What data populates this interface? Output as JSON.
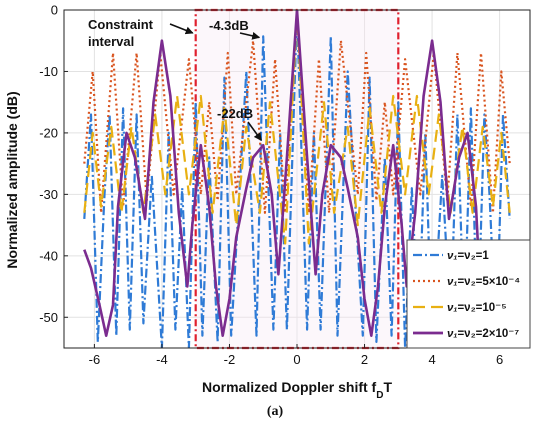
{
  "caption": "(a)",
  "chart_data": {
    "type": "line",
    "xlabel": "Normalized Doppler shift f",
    "xlabel_sub": "D",
    "xlabel_tail": "T",
    "ylabel": "Normalized amplitude (dB)",
    "xlim": [
      -6.9,
      6.9
    ],
    "ylim": [
      -55,
      0
    ],
    "xticks": [
      -6,
      -4,
      -2,
      0,
      2,
      4,
      6
    ],
    "yticks": [
      0,
      -10,
      -20,
      -30,
      -40,
      -50
    ],
    "grid": true,
    "legend_position": "bottom-right",
    "constraint_interval": {
      "x": [
        -3,
        3
      ],
      "label_line1": "Constraint",
      "label_line2": "interval",
      "color": "#e0202e"
    },
    "annotations": [
      {
        "text": "-4.3dB",
        "x": -1.0,
        "y": -4.3
      },
      {
        "text": "-22dB",
        "x": -1.0,
        "y": -22
      }
    ],
    "series": [
      {
        "name": "ν1=ν2=1",
        "legend_text": "=ν₂=1",
        "color": "#2f7bd6",
        "dash": "9,3,2,3",
        "points": [
          [
            -6.3,
            -34
          ],
          [
            -6.1,
            -17
          ],
          [
            -5.9,
            -54
          ],
          [
            -5.7,
            -30
          ],
          [
            -5.55,
            -17
          ],
          [
            -5.35,
            -53
          ],
          [
            -5.15,
            -16
          ],
          [
            -4.95,
            -52
          ],
          [
            -4.75,
            -17
          ],
          [
            -4.55,
            -51
          ],
          [
            -4.3,
            -27
          ],
          [
            -4.0,
            -55
          ],
          [
            -3.8,
            -20
          ],
          [
            -3.6,
            -52
          ],
          [
            -3.4,
            -29
          ],
          [
            -3.2,
            -55
          ],
          [
            -3.0,
            -15
          ],
          [
            -2.8,
            -53
          ],
          [
            -2.6,
            -24
          ],
          [
            -2.35,
            -54
          ],
          [
            -2.15,
            -11
          ],
          [
            -1.95,
            -53
          ],
          [
            -1.5,
            -10
          ],
          [
            -1.2,
            -53
          ],
          [
            -1.0,
            -4.3
          ],
          [
            -0.7,
            -52
          ],
          [
            -0.5,
            -20
          ],
          [
            -0.3,
            -52
          ],
          [
            0,
            0
          ],
          [
            0.3,
            -52
          ],
          [
            0.5,
            -20
          ],
          [
            0.7,
            -52
          ],
          [
            1.0,
            -4.3
          ],
          [
            1.2,
            -53
          ],
          [
            1.5,
            -10
          ],
          [
            1.95,
            -53
          ],
          [
            2.15,
            -11
          ],
          [
            2.35,
            -54
          ],
          [
            2.6,
            -24
          ],
          [
            2.8,
            -53
          ],
          [
            3.0,
            -15
          ],
          [
            3.2,
            -55
          ],
          [
            3.4,
            -29
          ],
          [
            3.6,
            -52
          ],
          [
            3.8,
            -20
          ],
          [
            4.0,
            -55
          ],
          [
            4.3,
            -27
          ],
          [
            4.55,
            -51
          ],
          [
            4.75,
            -17
          ],
          [
            4.95,
            -52
          ],
          [
            5.15,
            -16
          ],
          [
            5.35,
            -53
          ],
          [
            5.55,
            -17
          ],
          [
            5.7,
            -30
          ],
          [
            5.9,
            -54
          ],
          [
            6.1,
            -17
          ],
          [
            6.3,
            -34
          ]
        ]
      },
      {
        "name": "ν1=ν2=5×10^-4",
        "legend_text": "=ν₂=5×10⁻⁴",
        "color": "#d9541f",
        "dash": "2,3",
        "points": [
          [
            -6.3,
            -25
          ],
          [
            -6.05,
            -10
          ],
          [
            -5.8,
            -33
          ],
          [
            -5.45,
            -7
          ],
          [
            -5.15,
            -32
          ],
          [
            -4.75,
            -7
          ],
          [
            -4.45,
            -31
          ],
          [
            -4.05,
            -7
          ],
          [
            -3.65,
            -30
          ],
          [
            -3.2,
            -8
          ],
          [
            -2.85,
            -30
          ],
          [
            -2.6,
            -15
          ],
          [
            -2.35,
            -31
          ],
          [
            -2.05,
            -7
          ],
          [
            -1.8,
            -30
          ],
          [
            -1.3,
            -5
          ],
          [
            -0.95,
            -33
          ],
          [
            -0.65,
            -8
          ],
          [
            -0.35,
            -33
          ],
          [
            0,
            0
          ],
          [
            0.35,
            -33
          ],
          [
            0.65,
            -8
          ],
          [
            0.95,
            -33
          ],
          [
            1.3,
            -5
          ],
          [
            1.8,
            -30
          ],
          [
            2.05,
            -7
          ],
          [
            2.35,
            -31
          ],
          [
            2.6,
            -15
          ],
          [
            2.85,
            -30
          ],
          [
            3.2,
            -8
          ],
          [
            3.65,
            -30
          ],
          [
            4.05,
            -7
          ],
          [
            4.45,
            -31
          ],
          [
            4.75,
            -7
          ],
          [
            5.15,
            -32
          ],
          [
            5.45,
            -7
          ],
          [
            5.8,
            -33
          ],
          [
            6.05,
            -10
          ],
          [
            6.3,
            -25
          ]
        ]
      },
      {
        "name": "ν1=ν2=10^-5",
        "legend_text": "=ν₂=10⁻⁵",
        "color": "#e8b012",
        "dash": "12,6",
        "points": [
          [
            -6.3,
            -33
          ],
          [
            -6.05,
            -20
          ],
          [
            -5.8,
            -32
          ],
          [
            -5.5,
            -19
          ],
          [
            -5.2,
            -33
          ],
          [
            -4.9,
            -19
          ],
          [
            -4.55,
            -33
          ],
          [
            -4.2,
            -17
          ],
          [
            -3.9,
            -30
          ],
          [
            -3.55,
            -14
          ],
          [
            -3.2,
            -30
          ],
          [
            -2.85,
            -14
          ],
          [
            -2.5,
            -33
          ],
          [
            -2.15,
            -16
          ],
          [
            -1.8,
            -35
          ],
          [
            -1.5,
            -19
          ],
          [
            -1.1,
            -33
          ],
          [
            -0.8,
            -15
          ],
          [
            -0.35,
            -38
          ],
          [
            0,
            0
          ],
          [
            0.35,
            -38
          ],
          [
            0.8,
            -15
          ],
          [
            1.1,
            -33
          ],
          [
            1.5,
            -19
          ],
          [
            1.8,
            -35
          ],
          [
            2.15,
            -16
          ],
          [
            2.5,
            -33
          ],
          [
            2.85,
            -14
          ],
          [
            3.2,
            -30
          ],
          [
            3.55,
            -14
          ],
          [
            3.9,
            -30
          ],
          [
            4.2,
            -17
          ],
          [
            4.55,
            -33
          ],
          [
            4.9,
            -19
          ],
          [
            5.2,
            -33
          ],
          [
            5.5,
            -19
          ],
          [
            5.8,
            -32
          ],
          [
            6.05,
            -20
          ],
          [
            6.3,
            -33
          ]
        ]
      },
      {
        "name": "ν1=ν2=2×10^-7",
        "legend_text": "=ν₂=2×10⁻⁷",
        "color": "#7b2c8f",
        "dash": "",
        "points": [
          [
            -6.3,
            -39
          ],
          [
            -6.1,
            -42
          ],
          [
            -5.85,
            -48
          ],
          [
            -5.65,
            -53
          ],
          [
            -5.45,
            -48
          ],
          [
            -5.3,
            -32
          ],
          [
            -5.05,
            -20
          ],
          [
            -4.8,
            -24
          ],
          [
            -4.5,
            -34
          ],
          [
            -4.25,
            -15
          ],
          [
            -4.0,
            -5
          ],
          [
            -3.75,
            -14
          ],
          [
            -3.5,
            -33
          ],
          [
            -3.25,
            -45
          ],
          [
            -3.1,
            -35
          ],
          [
            -2.85,
            -22
          ],
          [
            -2.6,
            -32
          ],
          [
            -2.4,
            -45
          ],
          [
            -2.2,
            -53
          ],
          [
            -2.0,
            -47
          ],
          [
            -1.8,
            -37
          ],
          [
            -1.5,
            -29
          ],
          [
            -1.3,
            -24
          ],
          [
            -1.0,
            -22
          ],
          [
            -0.75,
            -30
          ],
          [
            -0.55,
            -43
          ],
          [
            -0.3,
            -24
          ],
          [
            0,
            0
          ],
          [
            0.3,
            -24
          ],
          [
            0.55,
            -43
          ],
          [
            0.75,
            -30
          ],
          [
            1.0,
            -22
          ],
          [
            1.3,
            -24
          ],
          [
            1.5,
            -29
          ],
          [
            1.8,
            -37
          ],
          [
            2.0,
            -47
          ],
          [
            2.2,
            -53
          ],
          [
            2.4,
            -45
          ],
          [
            2.6,
            -32
          ],
          [
            2.85,
            -22
          ],
          [
            3.1,
            -35
          ],
          [
            3.25,
            -45
          ],
          [
            3.5,
            -33
          ],
          [
            3.75,
            -14
          ],
          [
            4.0,
            -5
          ],
          [
            4.25,
            -15
          ],
          [
            4.5,
            -34
          ],
          [
            4.8,
            -24
          ],
          [
            5.05,
            -20
          ],
          [
            5.3,
            -32
          ],
          [
            5.45,
            -48
          ],
          [
            5.65,
            -53
          ],
          [
            5.85,
            -48
          ],
          [
            6.1,
            -42
          ],
          [
            6.3,
            -39
          ]
        ]
      }
    ]
  }
}
